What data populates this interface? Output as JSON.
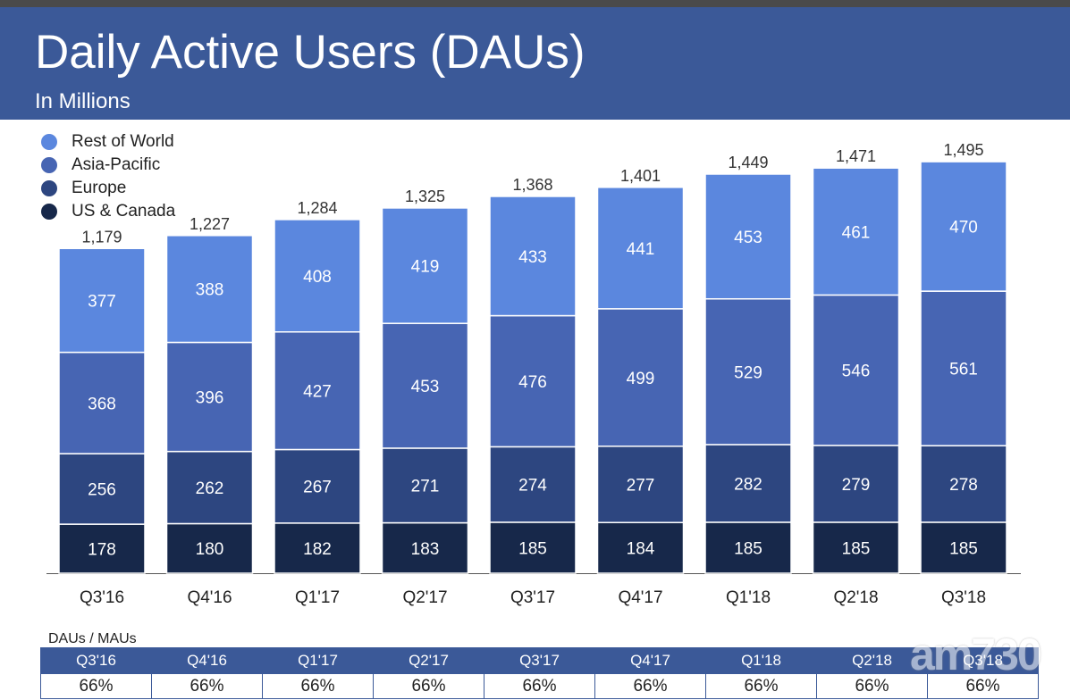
{
  "header": {
    "title": "Daily Active Users (DAUs)",
    "subtitle": "In Millions"
  },
  "colors": {
    "header_bg": "#3b5998",
    "rest_of_world": "#5b87de",
    "asia_pacific": "#4765b3",
    "europe": "#2d4680",
    "us_canada": "#17284a"
  },
  "chart_data": {
    "type": "bar",
    "stacked": true,
    "categories": [
      "Q3'16",
      "Q4'16",
      "Q1'17",
      "Q2'17",
      "Q3'17",
      "Q4'17",
      "Q1'18",
      "Q2'18",
      "Q3'18"
    ],
    "series": [
      {
        "name": "US & Canada",
        "color": "#17284a",
        "values": [
          178,
          180,
          182,
          183,
          185,
          184,
          185,
          185,
          185
        ]
      },
      {
        "name": "Europe",
        "color": "#2d4680",
        "values": [
          256,
          262,
          267,
          271,
          274,
          277,
          282,
          279,
          278
        ]
      },
      {
        "name": "Asia-Pacific",
        "color": "#4765b3",
        "values": [
          368,
          396,
          427,
          453,
          476,
          499,
          529,
          546,
          561
        ]
      },
      {
        "name": "Rest of World",
        "color": "#5b87de",
        "values": [
          377,
          388,
          408,
          419,
          433,
          441,
          453,
          461,
          470
        ]
      }
    ],
    "totals": [
      "1,179",
      "1,227",
      "1,284",
      "1,325",
      "1,368",
      "1,401",
      "1,449",
      "1,471",
      "1,495"
    ],
    "legend": [
      "Rest of World",
      "Asia-Pacific",
      "Europe",
      "US & Canada"
    ],
    "legend_position": "top-left",
    "grid": false
  },
  "ratio_table": {
    "caption": "DAUs / MAUs",
    "headers": [
      "Q3'16",
      "Q4'16",
      "Q1'17",
      "Q2'17",
      "Q3'17",
      "Q4'17",
      "Q1'18",
      "Q2'18",
      "Q3'18"
    ],
    "values": [
      "66%",
      "66%",
      "66%",
      "66%",
      "66%",
      "66%",
      "66%",
      "66%",
      "66%"
    ]
  },
  "watermark": {
    "text": "am730"
  }
}
